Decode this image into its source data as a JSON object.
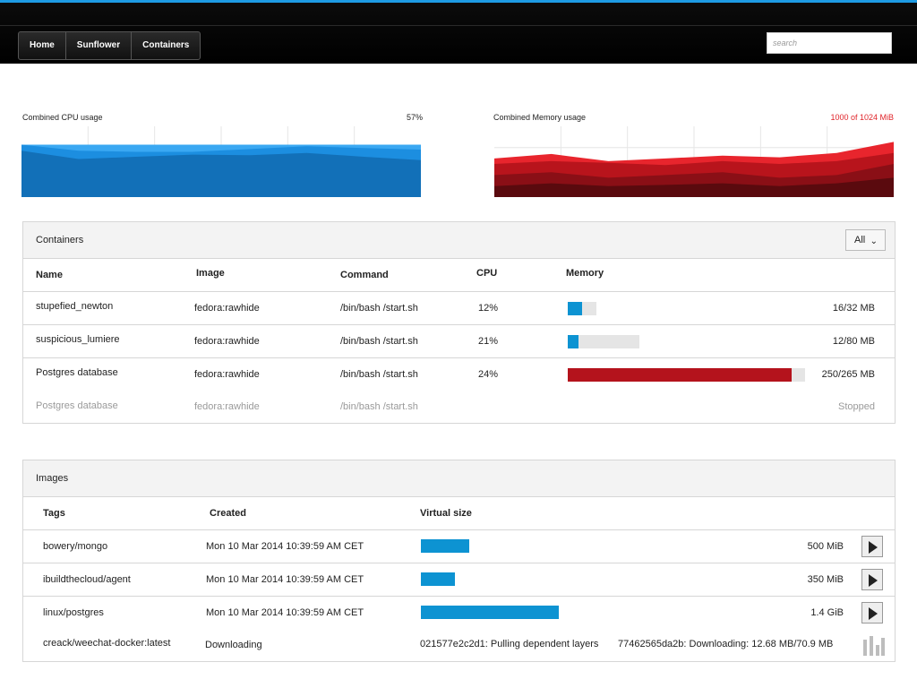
{
  "nav": {
    "items": [
      "Home",
      "Sunflower",
      "Containers"
    ],
    "search_placeholder": "search"
  },
  "cpu_chart": {
    "label": "Combined CPU usage",
    "value_text": "57%",
    "color": "#1d9be3",
    "series": [
      [
        0.84,
        0.69,
        0.73,
        0.77,
        0.76,
        0.8,
        0.73,
        0.67
      ],
      [
        0.95,
        0.84,
        0.82,
        0.82,
        0.87,
        0.92,
        0.89,
        0.86
      ],
      [
        0.95,
        0.95,
        0.95,
        0.95,
        0.95,
        0.95,
        0.95,
        0.95
      ]
    ]
  },
  "memory_chart": {
    "label": "Combined Memory usage",
    "value_text": "1000 of 1024 MiB",
    "value_color": "#e0242a",
    "color": "#c7141b",
    "series": [
      [
        0.7,
        0.78,
        0.65,
        0.7,
        0.75,
        0.72,
        0.8,
        1.0
      ],
      [
        0.6,
        0.65,
        0.62,
        0.58,
        0.65,
        0.6,
        0.65,
        0.8
      ],
      [
        0.4,
        0.45,
        0.35,
        0.4,
        0.45,
        0.35,
        0.4,
        0.6
      ],
      [
        0.2,
        0.25,
        0.2,
        0.22,
        0.25,
        0.2,
        0.25,
        0.35
      ]
    ]
  },
  "containers": {
    "title": "Containers",
    "filter": "All",
    "headers": {
      "name": "Name",
      "image": "Image",
      "command": "Command",
      "cpu": "CPU",
      "memory": "Memory"
    },
    "rows": [
      {
        "name": "stupefied_newton",
        "image": "fedora:rawhide",
        "command": "/bin/bash /start.sh",
        "cpu": "12%",
        "mem_used": 16,
        "mem_total": 32,
        "mem_text": "16/32 MB",
        "bar_color": "#0d93d2"
      },
      {
        "name": "suspicious_lumiere",
        "image": "fedora:rawhide",
        "command": "/bin/bash /start.sh",
        "cpu": "21%",
        "mem_used": 12,
        "mem_total": 80,
        "mem_text": "12/80 MB",
        "bar_color": "#0d93d2"
      },
      {
        "name": "Postgres database",
        "image": "fedora:rawhide",
        "command": "/bin/bash /start.sh",
        "cpu": "24%",
        "mem_used": 250,
        "mem_total": 265,
        "mem_text": "250/265 MB",
        "bar_color": "#b4131c"
      }
    ],
    "stopped_row": {
      "name": "Postgres database",
      "image": "fedora:rawhide",
      "command": "/bin/bash /start.sh",
      "status": "Stopped"
    }
  },
  "images": {
    "title": "Images",
    "headers": {
      "tags": "Tags",
      "created": "Created",
      "size": "Virtual size"
    },
    "rows": [
      {
        "tag": "bowery/mongo",
        "created": "Mon 10 Mar 2014 10:39:59 AM CET",
        "size_text": "500 MiB",
        "size_mib": 500
      },
      {
        "tag": "ibuildthecloud/agent",
        "created": "Mon 10 Mar 2014 10:39:59 AM CET",
        "size_text": "350 MiB",
        "size_mib": 350
      },
      {
        "tag": "linux/postgres",
        "created": "Mon 10 Mar 2014 10:39:59 AM CET",
        "size_text": "1.4 GiB",
        "size_mib": 1434
      }
    ],
    "downloading_row": {
      "tag": "creack/weechat-docker:latest",
      "status": "Downloading",
      "layer1": "021577e2c2d1: Pulling dependent layers",
      "layer2": "77462565da2b: Downloading: 12.68 MB/70.9 MB"
    }
  }
}
